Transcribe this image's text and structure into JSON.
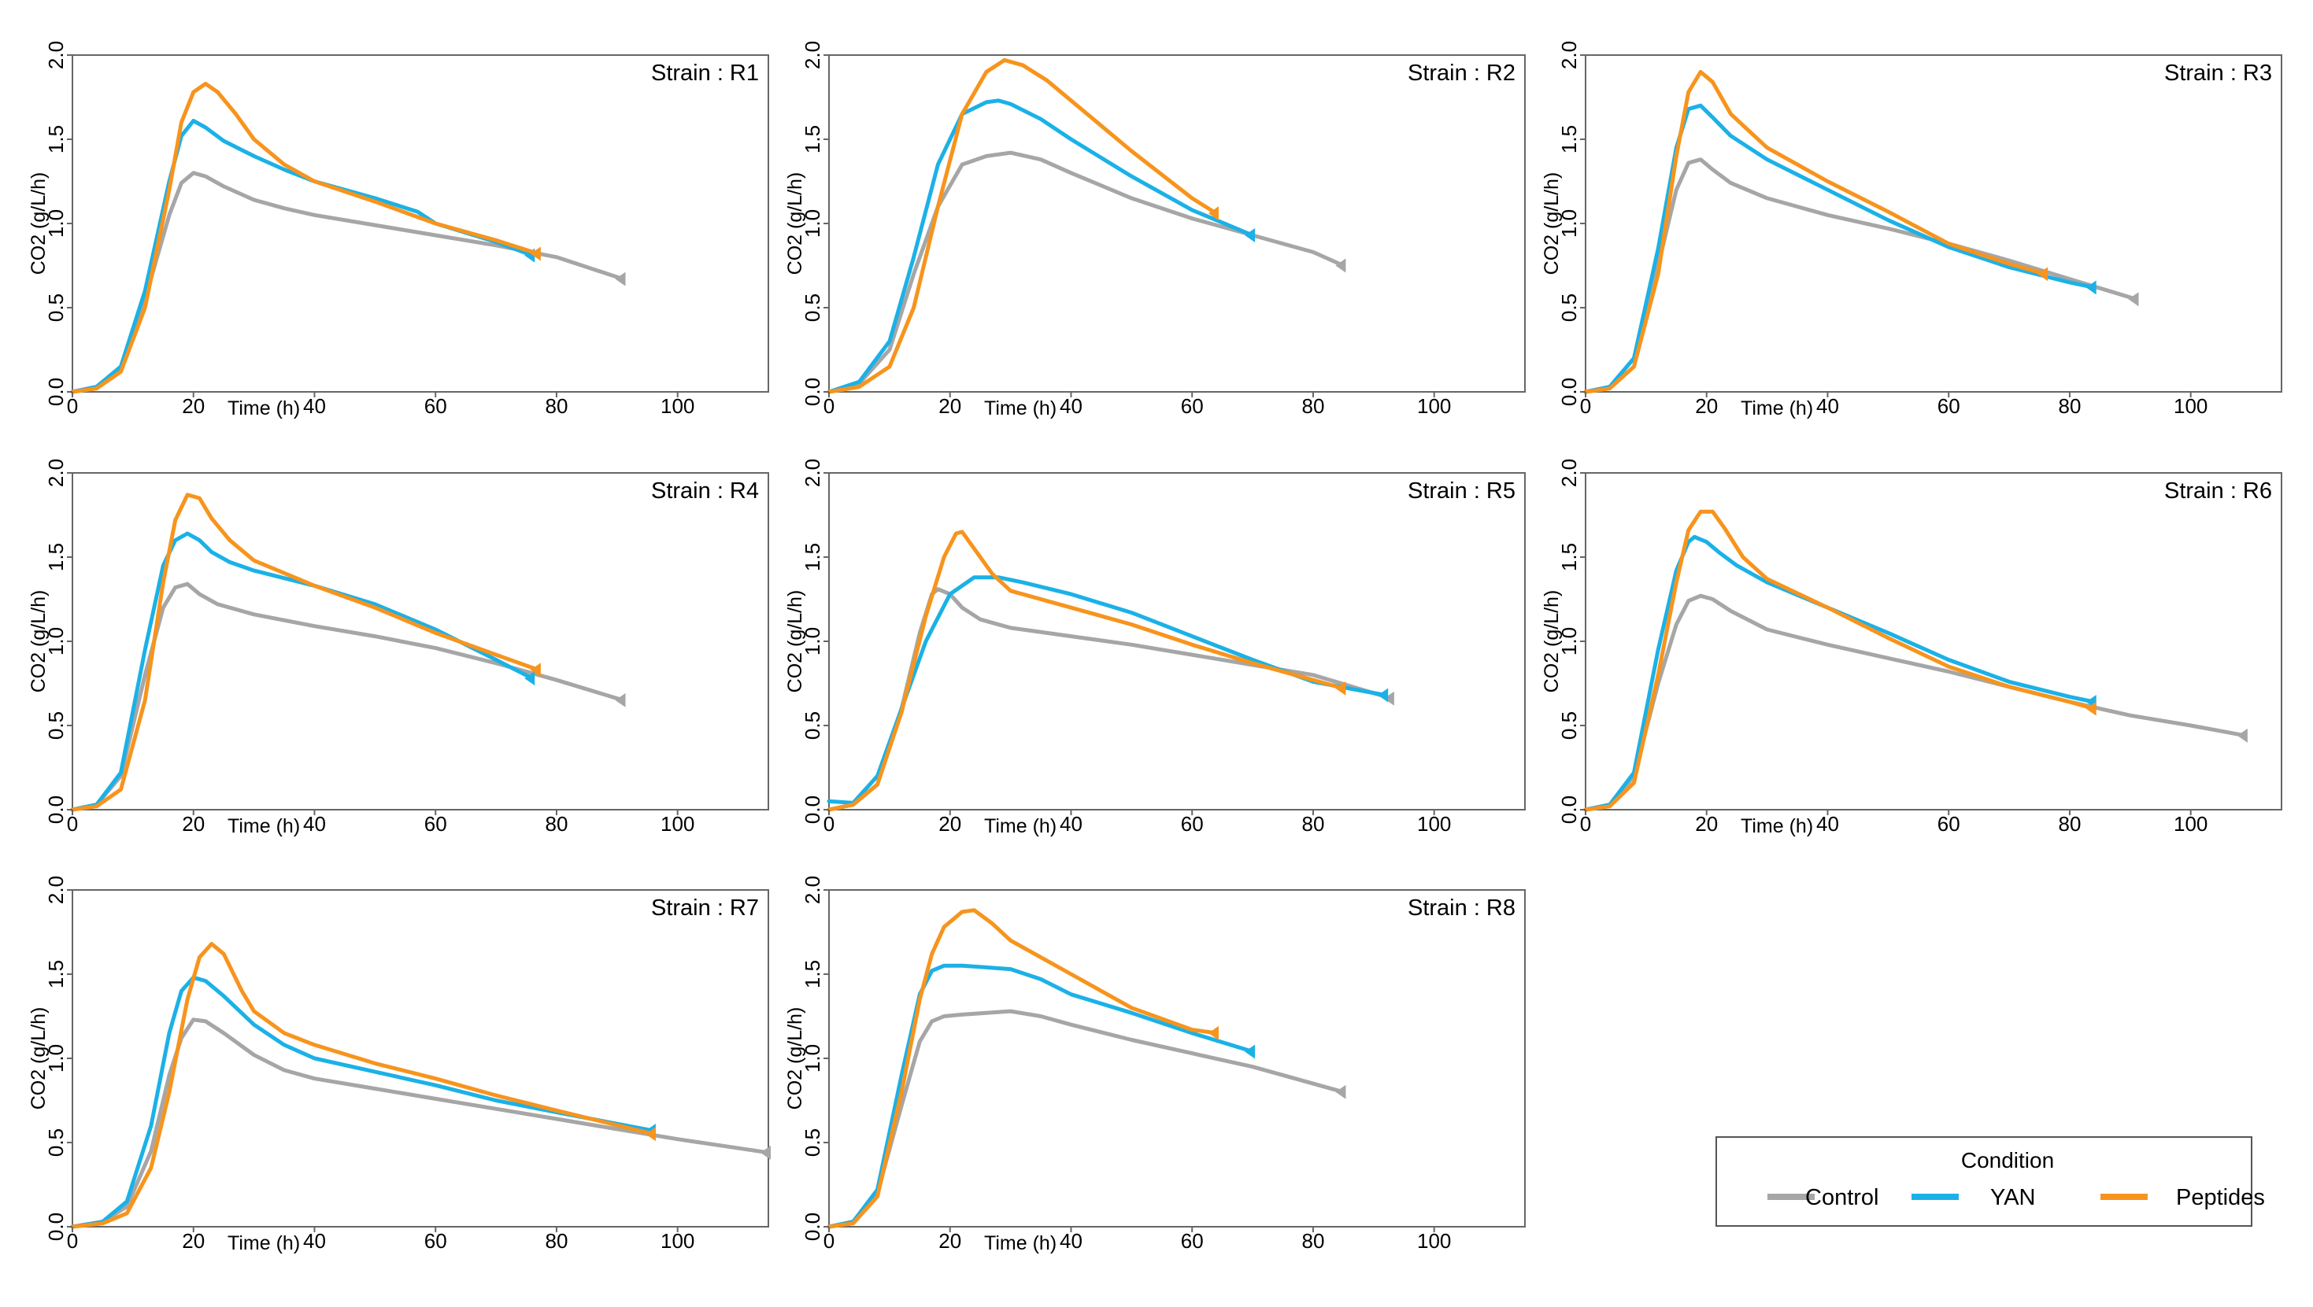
{
  "figure": {
    "xlabel": "Time (h)",
    "ylabel": "CO2 (g/L/h)",
    "xticks": [
      0,
      20,
      40,
      60,
      80,
      100
    ],
    "yticks": [
      0.0,
      0.5,
      1.0,
      1.5,
      2.0
    ],
    "ytick_labels": [
      "0.0",
      "0.5",
      "1.0",
      "1.5",
      "2.0"
    ],
    "xlim": [
      0,
      115
    ],
    "ylim": [
      0,
      2.0
    ]
  },
  "legend": {
    "title": "Condition",
    "entries": [
      {
        "label": "Control",
        "color": "#a6a6a6"
      },
      {
        "label": "YAN",
        "color": "#1bb1e7"
      },
      {
        "label": "Peptides",
        "color": "#f7941d"
      }
    ]
  },
  "chart_data": [
    {
      "type": "line",
      "title": "Strain : R1",
      "series": [
        {
          "name": "Control",
          "color": "#a6a6a6",
          "x": [
            0,
            4,
            8,
            12,
            16,
            18,
            20,
            22,
            25,
            30,
            35,
            40,
            50,
            60,
            70,
            80,
            91
          ],
          "y": [
            0.0,
            0.03,
            0.15,
            0.55,
            1.05,
            1.24,
            1.3,
            1.28,
            1.22,
            1.14,
            1.09,
            1.05,
            0.99,
            0.93,
            0.87,
            0.8,
            0.67
          ]
        },
        {
          "name": "YAN",
          "color": "#1bb1e7",
          "x": [
            0,
            4,
            8,
            12,
            16,
            18,
            20,
            22,
            25,
            30,
            35,
            40,
            50,
            57,
            60,
            70,
            76
          ],
          "y": [
            0.0,
            0.03,
            0.15,
            0.6,
            1.25,
            1.52,
            1.61,
            1.57,
            1.49,
            1.4,
            1.32,
            1.25,
            1.15,
            1.07,
            1.0,
            0.89,
            0.81
          ]
        },
        {
          "name": "Peptides",
          "color": "#f7941d",
          "x": [
            0,
            4,
            8,
            12,
            16,
            18,
            20,
            22,
            24,
            27,
            30,
            35,
            40,
            50,
            60,
            70,
            77
          ],
          "y": [
            0.0,
            0.02,
            0.12,
            0.5,
            1.2,
            1.6,
            1.78,
            1.83,
            1.78,
            1.65,
            1.5,
            1.35,
            1.25,
            1.13,
            1.0,
            0.9,
            0.82
          ]
        }
      ]
    },
    {
      "type": "line",
      "title": "Strain : R2",
      "series": [
        {
          "name": "Control",
          "color": "#a6a6a6",
          "x": [
            0,
            5,
            10,
            14,
            18,
            22,
            26,
            30,
            35,
            40,
            50,
            60,
            70,
            80,
            85
          ],
          "y": [
            0.0,
            0.05,
            0.25,
            0.7,
            1.1,
            1.35,
            1.4,
            1.42,
            1.38,
            1.3,
            1.15,
            1.03,
            0.93,
            0.83,
            0.75
          ]
        },
        {
          "name": "YAN",
          "color": "#1bb1e7",
          "x": [
            0,
            5,
            10,
            14,
            18,
            22,
            26,
            28,
            30,
            35,
            40,
            50,
            60,
            70
          ],
          "y": [
            0.0,
            0.06,
            0.3,
            0.8,
            1.35,
            1.65,
            1.72,
            1.73,
            1.71,
            1.62,
            1.5,
            1.28,
            1.08,
            0.93
          ]
        },
        {
          "name": "Peptides",
          "color": "#f7941d",
          "x": [
            0,
            5,
            10,
            14,
            18,
            22,
            26,
            29,
            32,
            36,
            40,
            50,
            60,
            64
          ],
          "y": [
            0.0,
            0.03,
            0.15,
            0.5,
            1.1,
            1.65,
            1.9,
            1.97,
            1.94,
            1.85,
            1.73,
            1.43,
            1.15,
            1.06
          ]
        }
      ]
    },
    {
      "type": "line",
      "title": "Strain : R3",
      "series": [
        {
          "name": "Control",
          "color": "#a6a6a6",
          "x": [
            0,
            4,
            8,
            12,
            15,
            17,
            19,
            21,
            24,
            30,
            40,
            50,
            60,
            70,
            80,
            91
          ],
          "y": [
            0.0,
            0.03,
            0.2,
            0.75,
            1.2,
            1.36,
            1.38,
            1.32,
            1.24,
            1.15,
            1.05,
            0.97,
            0.88,
            0.78,
            0.67,
            0.55
          ]
        },
        {
          "name": "YAN",
          "color": "#1bb1e7",
          "x": [
            0,
            4,
            8,
            12,
            15,
            17,
            19,
            21,
            24,
            30,
            40,
            50,
            60,
            70,
            80,
            84
          ],
          "y": [
            0.0,
            0.03,
            0.2,
            0.85,
            1.45,
            1.68,
            1.7,
            1.63,
            1.52,
            1.38,
            1.2,
            1.02,
            0.86,
            0.74,
            0.65,
            0.62
          ]
        },
        {
          "name": "Peptides",
          "color": "#f7941d",
          "x": [
            0,
            4,
            8,
            12,
            15,
            17,
            19,
            21,
            24,
            30,
            40,
            50,
            60,
            70,
            76
          ],
          "y": [
            0.0,
            0.02,
            0.15,
            0.7,
            1.4,
            1.78,
            1.9,
            1.84,
            1.65,
            1.45,
            1.25,
            1.07,
            0.88,
            0.76,
            0.7
          ]
        }
      ]
    },
    {
      "type": "line",
      "title": "Strain : R4",
      "series": [
        {
          "name": "Control",
          "color": "#a6a6a6",
          "x": [
            0,
            4,
            8,
            12,
            15,
            17,
            19,
            21,
            24,
            30,
            40,
            50,
            60,
            70,
            80,
            91
          ],
          "y": [
            0.0,
            0.03,
            0.2,
            0.8,
            1.2,
            1.32,
            1.34,
            1.28,
            1.22,
            1.16,
            1.09,
            1.03,
            0.96,
            0.87,
            0.77,
            0.65
          ]
        },
        {
          "name": "YAN",
          "color": "#1bb1e7",
          "x": [
            0,
            4,
            8,
            12,
            15,
            17,
            19,
            21,
            23,
            26,
            30,
            40,
            50,
            60,
            70,
            76
          ],
          "y": [
            0.0,
            0.03,
            0.22,
            0.95,
            1.45,
            1.6,
            1.64,
            1.6,
            1.53,
            1.47,
            1.42,
            1.33,
            1.22,
            1.07,
            0.89,
            0.78
          ]
        },
        {
          "name": "Peptides",
          "color": "#f7941d",
          "x": [
            0,
            4,
            8,
            12,
            15,
            17,
            19,
            21,
            23,
            26,
            30,
            40,
            50,
            60,
            70,
            77
          ],
          "y": [
            0.0,
            0.02,
            0.12,
            0.65,
            1.35,
            1.72,
            1.87,
            1.85,
            1.73,
            1.6,
            1.48,
            1.33,
            1.2,
            1.05,
            0.92,
            0.83
          ]
        }
      ]
    },
    {
      "type": "line",
      "title": "Strain : R5",
      "series": [
        {
          "name": "Control",
          "color": "#a6a6a6",
          "x": [
            0,
            4,
            8,
            12,
            15,
            17,
            18,
            20,
            22,
            25,
            30,
            40,
            50,
            60,
            70,
            80,
            93
          ],
          "y": [
            0.0,
            0.03,
            0.15,
            0.6,
            1.05,
            1.28,
            1.31,
            1.28,
            1.2,
            1.13,
            1.08,
            1.03,
            0.98,
            0.92,
            0.86,
            0.8,
            0.66
          ]
        },
        {
          "name": "YAN",
          "color": "#1bb1e7",
          "x": [
            0,
            4,
            8,
            12,
            16,
            20,
            24,
            28,
            32,
            40,
            50,
            60,
            70,
            80,
            92
          ],
          "y": [
            0.05,
            0.04,
            0.2,
            0.6,
            1.0,
            1.28,
            1.38,
            1.38,
            1.35,
            1.28,
            1.17,
            1.03,
            0.89,
            0.76,
            0.68
          ]
        },
        {
          "name": "Peptides",
          "color": "#f7941d",
          "x": [
            0,
            4,
            8,
            12,
            16,
            19,
            21,
            22,
            24,
            27,
            30,
            40,
            50,
            60,
            70,
            80,
            85
          ],
          "y": [
            0.0,
            0.03,
            0.15,
            0.58,
            1.15,
            1.5,
            1.64,
            1.65,
            1.55,
            1.4,
            1.3,
            1.2,
            1.1,
            0.98,
            0.87,
            0.77,
            0.72
          ]
        }
      ]
    },
    {
      "type": "line",
      "title": "Strain : R6",
      "series": [
        {
          "name": "Control",
          "color": "#a6a6a6",
          "x": [
            0,
            4,
            8,
            12,
            15,
            17,
            19,
            21,
            24,
            30,
            40,
            50,
            60,
            70,
            80,
            90,
            100,
            109
          ],
          "y": [
            0.0,
            0.03,
            0.2,
            0.75,
            1.1,
            1.24,
            1.27,
            1.25,
            1.18,
            1.07,
            0.98,
            0.9,
            0.82,
            0.73,
            0.64,
            0.56,
            0.5,
            0.44
          ]
        },
        {
          "name": "YAN",
          "color": "#1bb1e7",
          "x": [
            0,
            4,
            8,
            12,
            15,
            17,
            18,
            20,
            22,
            25,
            30,
            40,
            50,
            60,
            70,
            80,
            84
          ],
          "y": [
            0.0,
            0.03,
            0.22,
            0.95,
            1.42,
            1.59,
            1.62,
            1.59,
            1.53,
            1.45,
            1.35,
            1.2,
            1.05,
            0.89,
            0.76,
            0.67,
            0.64
          ]
        },
        {
          "name": "Peptides",
          "color": "#f7941d",
          "x": [
            0,
            4,
            8,
            12,
            15,
            17,
            19,
            21,
            23,
            26,
            30,
            40,
            50,
            60,
            70,
            80,
            84
          ],
          "y": [
            0.0,
            0.02,
            0.16,
            0.8,
            1.35,
            1.66,
            1.77,
            1.77,
            1.67,
            1.5,
            1.37,
            1.2,
            1.02,
            0.85,
            0.73,
            0.64,
            0.6
          ]
        }
      ]
    },
    {
      "type": "line",
      "title": "Strain : R7",
      "series": [
        {
          "name": "Control",
          "color": "#a6a6a6",
          "x": [
            0,
            5,
            9,
            13,
            16,
            18,
            20,
            22,
            25,
            30,
            35,
            40,
            50,
            60,
            70,
            80,
            90,
            100,
            115
          ],
          "y": [
            0.0,
            0.03,
            0.12,
            0.45,
            0.9,
            1.12,
            1.23,
            1.22,
            1.15,
            1.02,
            0.93,
            0.88,
            0.82,
            0.76,
            0.7,
            0.64,
            0.58,
            0.52,
            0.44
          ]
        },
        {
          "name": "YAN",
          "color": "#1bb1e7",
          "x": [
            0,
            5,
            9,
            13,
            16,
            18,
            20,
            22,
            25,
            30,
            35,
            40,
            50,
            60,
            70,
            80,
            96
          ],
          "y": [
            0.0,
            0.03,
            0.15,
            0.6,
            1.15,
            1.4,
            1.48,
            1.46,
            1.37,
            1.2,
            1.08,
            1.0,
            0.92,
            0.84,
            0.75,
            0.68,
            0.57
          ]
        },
        {
          "name": "Peptides",
          "color": "#f7941d",
          "x": [
            0,
            5,
            9,
            13,
            16,
            19,
            21,
            23,
            25,
            28,
            30,
            35,
            40,
            50,
            60,
            70,
            80,
            96
          ],
          "y": [
            0.0,
            0.02,
            0.08,
            0.35,
            0.8,
            1.35,
            1.6,
            1.68,
            1.62,
            1.4,
            1.28,
            1.15,
            1.08,
            0.97,
            0.88,
            0.78,
            0.69,
            0.55
          ]
        }
      ]
    },
    {
      "type": "line",
      "title": "Strain : R8",
      "series": [
        {
          "name": "Control",
          "color": "#a6a6a6",
          "x": [
            0,
            4,
            8,
            12,
            15,
            17,
            19,
            22,
            26,
            30,
            35,
            40,
            50,
            60,
            70,
            85
          ],
          "y": [
            0.0,
            0.03,
            0.2,
            0.72,
            1.1,
            1.22,
            1.25,
            1.26,
            1.27,
            1.28,
            1.25,
            1.2,
            1.11,
            1.03,
            0.95,
            0.8
          ]
        },
        {
          "name": "YAN",
          "color": "#1bb1e7",
          "x": [
            0,
            4,
            8,
            12,
            15,
            17,
            19,
            22,
            26,
            30,
            35,
            40,
            50,
            60,
            70
          ],
          "y": [
            0.0,
            0.03,
            0.22,
            0.9,
            1.38,
            1.52,
            1.55,
            1.55,
            1.54,
            1.53,
            1.47,
            1.38,
            1.27,
            1.15,
            1.04
          ]
        },
        {
          "name": "Peptides",
          "color": "#f7941d",
          "x": [
            0,
            4,
            8,
            12,
            15,
            17,
            19,
            22,
            24,
            27,
            30,
            35,
            40,
            50,
            60,
            64
          ],
          "y": [
            0.0,
            0.02,
            0.18,
            0.8,
            1.35,
            1.62,
            1.78,
            1.87,
            1.88,
            1.8,
            1.7,
            1.6,
            1.5,
            1.3,
            1.17,
            1.15
          ]
        }
      ]
    }
  ]
}
